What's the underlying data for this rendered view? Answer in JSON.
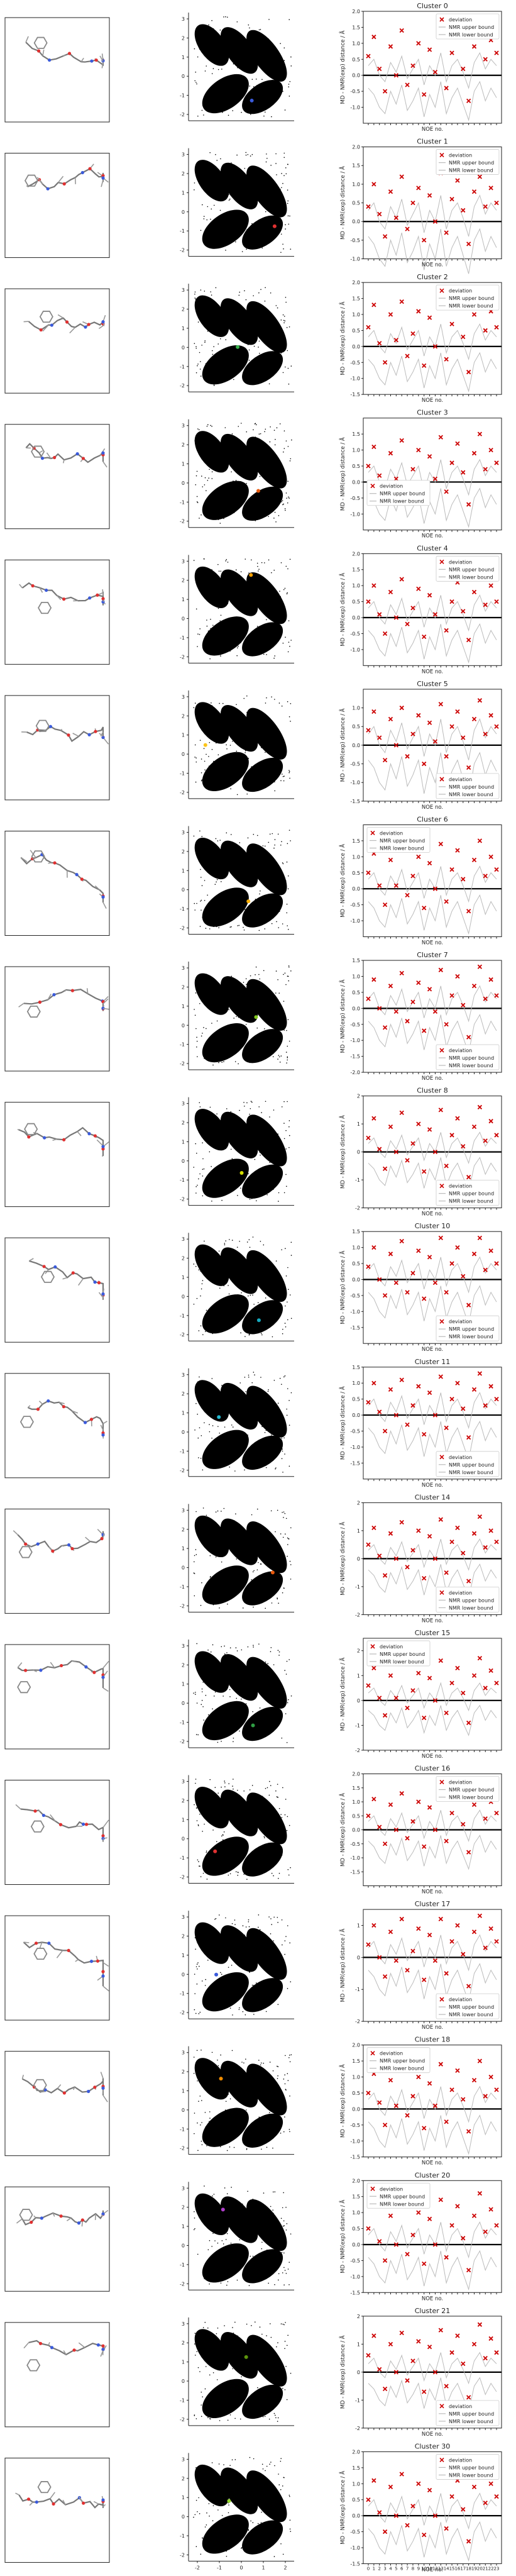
{
  "panels": {
    "ylabel": "MD - NMR(exp) distance / Å",
    "xlabel": "NOE no.",
    "legend": [
      "deviation",
      "NMR upper bound",
      "NMR lower bound"
    ],
    "scatter_yticks": [
      "-2",
      "-1",
      "0",
      "1",
      "2",
      "3"
    ],
    "scatter_xticks": [
      "-2",
      "-1",
      "0",
      "1",
      "2"
    ],
    "noe_ticks": [
      "0",
      "1",
      "2",
      "3",
      "4",
      "5",
      "6",
      "7",
      "8",
      "9",
      "10",
      "11",
      "12",
      "13",
      "14",
      "15",
      "16",
      "17",
      "18",
      "19",
      "20",
      "21",
      "22",
      "23"
    ]
  },
  "chart_data": [
    {
      "type": "scatter",
      "title": "Cluster 0",
      "legend_position": "top-right",
      "ylim": [
        -1.5,
        2.0
      ],
      "yticks": [
        "-1.0",
        "-0.5",
        "0.0",
        "0.5",
        "1.0",
        "1.5",
        "2.0"
      ],
      "marker_color": "#3b5bdb",
      "deviation": [
        0.6,
        1.2,
        0.2,
        -0.5,
        0.9,
        0.0,
        1.4,
        -0.3,
        0.3,
        1.0,
        -0.6,
        0.8,
        0.1,
        1.5,
        -0.4,
        0.7,
        1.3,
        0.2,
        -0.8,
        0.9,
        1.5,
        0.5,
        1.1,
        0.7
      ]
    },
    {
      "type": "scatter",
      "title": "Cluster 1",
      "legend_position": "top-right",
      "ylim": [
        -1.0,
        2.0
      ],
      "yticks": [
        "-1.0",
        "-0.5",
        "0.0",
        "0.5",
        "1.0",
        "1.5",
        "2.0"
      ],
      "marker_color": "#e03131",
      "deviation": [
        0.4,
        1.0,
        0.2,
        -0.4,
        0.8,
        0.1,
        1.2,
        -0.2,
        0.5,
        0.9,
        -0.5,
        0.7,
        0.0,
        1.3,
        -0.3,
        0.6,
        1.1,
        0.3,
        -0.6,
        0.8,
        1.2,
        0.4,
        0.9,
        0.5
      ]
    },
    {
      "type": "scatter",
      "title": "Cluster 2",
      "legend_position": "top-right",
      "ylim": [
        -1.5,
        2.0
      ],
      "yticks": [
        "-1.5",
        "-1.0",
        "-0.5",
        "0.0",
        "0.5",
        "1.0",
        "1.5",
        "2.0"
      ],
      "marker_color": "#37b24d",
      "deviation": [
        0.6,
        1.3,
        0.1,
        -0.5,
        1.0,
        0.2,
        1.4,
        -0.3,
        0.4,
        1.1,
        -0.6,
        0.9,
        0.0,
        1.5,
        -0.4,
        0.7,
        1.2,
        0.3,
        -0.8,
        1.0,
        1.6,
        0.5,
        1.1,
        0.6
      ]
    },
    {
      "type": "scatter",
      "title": "Cluster 3",
      "legend_position": "middle-left",
      "ylim": [
        -1.5,
        2.0
      ],
      "yticks": [
        "-1.0",
        "-0.5",
        "0.0",
        "0.5",
        "1.0",
        "1.5"
      ],
      "marker_color": "#e8590c",
      "deviation": [
        0.5,
        1.1,
        0.2,
        -0.4,
        0.9,
        0.1,
        1.3,
        -0.3,
        0.4,
        1.0,
        -0.5,
        0.8,
        0.1,
        1.4,
        -0.3,
        0.6,
        1.2,
        0.3,
        -0.7,
        0.9,
        1.5,
        0.4,
        1.0,
        0.6
      ]
    },
    {
      "type": "scatter",
      "title": "Cluster 4",
      "legend_position": "top-right",
      "ylim": [
        -1.5,
        2.0
      ],
      "yticks": [
        "-1.0",
        "-0.5",
        "0.0",
        "0.5",
        "1.0",
        "1.5",
        "2.0"
      ],
      "marker_color": "#f59f00",
      "deviation": [
        0.5,
        1.0,
        0.1,
        -0.5,
        0.8,
        0.0,
        1.2,
        -0.2,
        0.3,
        0.9,
        -0.6,
        0.7,
        0.1,
        1.3,
        -0.4,
        0.5,
        1.1,
        0.2,
        -0.7,
        0.8,
        1.4,
        0.4,
        1.0,
        0.5
      ]
    },
    {
      "type": "scatter",
      "title": "Cluster 5",
      "legend_position": "bottom-right",
      "ylim": [
        -1.5,
        1.5
      ],
      "yticks": [
        "-1.5",
        "-1.0",
        "-0.5",
        "0.0",
        "0.5",
        "1.0"
      ],
      "marker_color": "#fcc419",
      "deviation": [
        0.4,
        0.9,
        0.2,
        -0.4,
        0.7,
        0.0,
        1.0,
        -0.3,
        0.3,
        0.8,
        -0.5,
        0.6,
        0.1,
        1.1,
        -0.3,
        0.5,
        0.9,
        0.2,
        -0.6,
        0.7,
        1.2,
        0.3,
        0.8,
        0.5
      ]
    },
    {
      "type": "scatter",
      "title": "Cluster 6",
      "legend_position": "top-left",
      "ylim": [
        -1.5,
        2.0
      ],
      "yticks": [
        "-1.0",
        "-0.5",
        "0.0",
        "0.5",
        "1.0",
        "1.5"
      ],
      "marker_color": "#fab005",
      "deviation": [
        0.5,
        1.1,
        0.1,
        -0.5,
        0.9,
        0.1,
        1.3,
        -0.2,
        0.4,
        1.0,
        -0.6,
        0.8,
        0.0,
        1.4,
        -0.4,
        0.6,
        1.2,
        0.3,
        -0.7,
        0.9,
        1.5,
        0.4,
        1.0,
        0.6
      ]
    },
    {
      "type": "scatter",
      "title": "Cluster 7",
      "legend_position": "bottom-right",
      "ylim": [
        -2.0,
        1.5
      ],
      "yticks": [
        "-2.0",
        "-1.5",
        "-1.0",
        "-0.5",
        "0.0",
        "0.5",
        "1.0",
        "1.5"
      ],
      "marker_color": "#82c91e",
      "deviation": [
        0.3,
        0.9,
        0.0,
        -0.6,
        0.7,
        -0.1,
        1.1,
        -0.4,
        0.2,
        0.8,
        -0.7,
        0.6,
        -0.1,
        1.2,
        -0.5,
        0.4,
        1.0,
        0.1,
        -0.9,
        0.7,
        1.3,
        0.3,
        0.9,
        0.4
      ]
    },
    {
      "type": "scatter",
      "title": "Cluster 8",
      "legend_position": "bottom-right",
      "ylim": [
        -2.0,
        2.0
      ],
      "yticks": [
        "-2",
        "-1",
        "0",
        "1",
        "2"
      ],
      "marker_color": "#d6e000",
      "deviation": [
        0.5,
        1.2,
        0.1,
        -0.6,
        0.9,
        0.0,
        1.4,
        -0.3,
        0.3,
        1.0,
        -0.7,
        0.8,
        0.0,
        1.5,
        -0.5,
        0.6,
        1.2,
        0.2,
        -0.9,
        0.9,
        1.6,
        0.4,
        1.1,
        0.6
      ]
    },
    {
      "type": "scatter",
      "title": "Cluster 10",
      "legend_position": "bottom-right",
      "ylim": [
        -2.0,
        1.5
      ],
      "yticks": [
        "-1.5",
        "-1.0",
        "-0.5",
        "0.0",
        "0.5",
        "1.0",
        "1.5"
      ],
      "marker_color": "#15aabf",
      "deviation": [
        0.4,
        1.0,
        0.0,
        -0.5,
        0.8,
        -0.1,
        1.2,
        -0.4,
        0.2,
        0.9,
        -0.6,
        0.7,
        -0.1,
        1.3,
        -0.4,
        0.5,
        1.0,
        0.1,
        -0.8,
        0.8,
        1.3,
        0.3,
        0.9,
        0.5
      ]
    },
    {
      "type": "scatter",
      "title": "Cluster 11",
      "legend_position": "bottom-right",
      "ylim": [
        -2.0,
        1.5
      ],
      "yticks": [
        "-1.5",
        "-1.0",
        "-0.5",
        "0.0",
        "0.5",
        "1.0",
        "1.5"
      ],
      "marker_color": "#22b8cf",
      "deviation": [
        0.4,
        1.0,
        0.1,
        -0.5,
        0.8,
        0.0,
        1.1,
        -0.3,
        0.3,
        0.9,
        -0.6,
        0.7,
        0.0,
        1.2,
        -0.4,
        0.5,
        1.0,
        0.2,
        -0.7,
        0.8,
        1.3,
        0.3,
        0.9,
        0.5
      ]
    },
    {
      "type": "scatter",
      "title": "Cluster 14",
      "legend_position": "bottom-right",
      "ylim": [
        -2.0,
        2.0
      ],
      "yticks": [
        "-2",
        "-1",
        "0",
        "1",
        "2"
      ],
      "marker_color": "#e8590c",
      "deviation": [
        0.5,
        1.1,
        0.1,
        -0.6,
        0.9,
        0.0,
        1.3,
        -0.3,
        0.3,
        1.0,
        -0.7,
        0.8,
        0.0,
        1.4,
        -0.5,
        0.6,
        1.1,
        0.2,
        -0.8,
        0.9,
        1.5,
        0.4,
        1.0,
        0.6
      ]
    },
    {
      "type": "scatter",
      "title": "Cluster 15",
      "legend_position": "top-left",
      "ylim": [
        -2.0,
        2.5
      ],
      "yticks": [
        "-2",
        "-1",
        "0",
        "1",
        "2"
      ],
      "marker_color": "#2f9e44",
      "deviation": [
        0.6,
        1.3,
        0.1,
        -0.6,
        1.0,
        0.1,
        1.5,
        -0.3,
        0.4,
        1.1,
        -0.7,
        0.9,
        0.0,
        1.6,
        -0.5,
        0.7,
        1.3,
        0.3,
        -0.9,
        1.0,
        1.7,
        0.5,
        1.2,
        0.7
      ]
    },
    {
      "type": "scatter",
      "title": "Cluster 16",
      "legend_position": "top-right",
      "ylim": [
        -2.0,
        2.0
      ],
      "yticks": [
        "-1.5",
        "-1.0",
        "-0.5",
        "0.0",
        "0.5",
        "1.0",
        "1.5",
        "2.0"
      ],
      "marker_color": "#e03131",
      "deviation": [
        0.5,
        1.1,
        0.1,
        -0.5,
        0.9,
        0.0,
        1.3,
        -0.3,
        0.3,
        1.0,
        -0.6,
        0.8,
        0.0,
        1.4,
        -0.4,
        0.6,
        1.1,
        0.2,
        -0.8,
        0.9,
        1.5,
        0.4,
        1.0,
        0.6
      ]
    },
    {
      "type": "scatter",
      "title": "Cluster 17",
      "legend_position": "bottom-right",
      "ylim": [
        -2.0,
        1.5
      ],
      "yticks": [
        "-2",
        "-1",
        "0",
        "1"
      ],
      "marker_color": "#3b5bdb",
      "deviation": [
        0.4,
        1.0,
        0.0,
        -0.6,
        0.8,
        -0.1,
        1.2,
        -0.4,
        0.2,
        0.9,
        -0.7,
        0.7,
        -0.1,
        1.2,
        -0.5,
        0.5,
        1.0,
        0.1,
        -0.9,
        0.8,
        1.3,
        0.3,
        0.9,
        0.5
      ]
    },
    {
      "type": "scatter",
      "title": "Cluster 18",
      "legend_position": "top-left",
      "ylim": [
        -1.5,
        2.0
      ],
      "yticks": [
        "-1.5",
        "-1.0",
        "-0.5",
        "0.0",
        "0.5",
        "1.0",
        "1.5",
        "2.0"
      ],
      "marker_color": "#f08c00",
      "deviation": [
        0.5,
        1.1,
        0.2,
        -0.5,
        0.9,
        0.1,
        1.3,
        -0.2,
        0.4,
        1.0,
        -0.6,
        0.8,
        0.1,
        1.4,
        -0.4,
        0.6,
        1.2,
        0.3,
        -0.7,
        0.9,
        1.5,
        0.4,
        1.0,
        0.6
      ]
    },
    {
      "type": "scatter",
      "title": "Cluster 20",
      "legend_position": "top-left",
      "ylim": [
        -1.5,
        2.0
      ],
      "yticks": [
        "-1.5",
        "-1.0",
        "-0.5",
        "0.0",
        "0.5",
        "1.0",
        "1.5",
        "2.0"
      ],
      "marker_color": "#ae3ec9",
      "deviation": [
        0.5,
        1.2,
        0.1,
        -0.5,
        0.9,
        0.0,
        1.3,
        -0.3,
        0.3,
        1.0,
        -0.6,
        0.8,
        0.0,
        1.4,
        -0.4,
        0.6,
        1.2,
        0.2,
        -0.8,
        0.9,
        1.6,
        0.4,
        1.1,
        0.6
      ]
    },
    {
      "type": "scatter",
      "title": "Cluster 21",
      "legend_position": "bottom-right",
      "ylim": [
        -2.0,
        2.0
      ],
      "yticks": [
        "-2",
        "-1",
        "0",
        "1",
        "2"
      ],
      "marker_color": "#5c940d",
      "deviation": [
        0.6,
        1.3,
        0.1,
        -0.6,
        1.0,
        0.0,
        1.4,
        -0.3,
        0.4,
        1.1,
        -0.7,
        0.9,
        0.0,
        1.5,
        -0.5,
        0.7,
        1.3,
        0.3,
        -0.9,
        1.0,
        1.7,
        0.5,
        1.2,
        0.7
      ]
    },
    {
      "type": "scatter",
      "title": "Cluster 30",
      "legend_position": "top-right",
      "ylim": [
        -1.5,
        2.0
      ],
      "yticks": [
        "-1.5",
        "-1.0",
        "-0.5",
        "0.0",
        "0.5",
        "1.0",
        "1.5",
        "2.0"
      ],
      "marker_color": "#94d82d",
      "deviation": [
        0.5,
        1.1,
        0.1,
        -0.5,
        0.9,
        0.0,
        1.3,
        -0.3,
        0.3,
        1.0,
        -0.6,
        0.8,
        0.0,
        1.4,
        -0.4,
        0.6,
        1.1,
        0.2,
        -0.8,
        0.9,
        1.5,
        0.4,
        1.0,
        0.6
      ]
    }
  ],
  "common_bounds": {
    "upper": [
      0.3,
      0.5,
      0.0,
      -0.2,
      0.4,
      0.1,
      0.6,
      -0.1,
      0.2,
      0.5,
      -0.3,
      0.3,
      0.0,
      0.7,
      -0.2,
      0.3,
      0.5,
      0.1,
      -0.4,
      0.4,
      0.7,
      0.2,
      0.5,
      0.3
    ],
    "lower": [
      -0.4,
      -0.6,
      -1.0,
      -1.2,
      -0.5,
      -0.9,
      -0.3,
      -1.1,
      -0.8,
      -0.4,
      -1.3,
      -0.6,
      -1.0,
      -0.2,
      -1.2,
      -0.7,
      -0.4,
      -0.9,
      -1.4,
      -0.5,
      -0.2,
      -0.8,
      -0.4,
      -0.7
    ]
  }
}
